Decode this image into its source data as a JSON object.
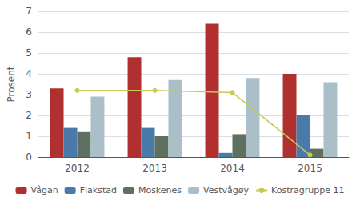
{
  "chart_data": {
    "type": "bar",
    "categories": [
      "2012",
      "2013",
      "2014",
      "2015"
    ],
    "series": [
      {
        "name": "Vågan",
        "type": "bar",
        "color": "#b03030",
        "values": [
          3.3,
          4.8,
          6.4,
          4.0
        ]
      },
      {
        "name": "Flakstad",
        "type": "bar",
        "color": "#4a7aaa",
        "values": [
          1.4,
          1.4,
          0.2,
          2.0
        ]
      },
      {
        "name": "Moskenes",
        "type": "bar",
        "color": "#607060",
        "values": [
          1.2,
          1.0,
          1.1,
          0.4
        ]
      },
      {
        "name": "Vestvågøy",
        "type": "bar",
        "color": "#aabfc8",
        "values": [
          2.9,
          3.7,
          3.8,
          3.6
        ]
      },
      {
        "name": "Kostragruppe 11",
        "type": "line",
        "color": "#c8c855",
        "marker": "circle",
        "values": [
          3.2,
          3.2,
          3.1,
          0.1
        ]
      }
    ],
    "ylabel": "Prosent",
    "ylim": [
      0,
      7
    ],
    "yticks": [
      0,
      1,
      2,
      3,
      4,
      5,
      6,
      7
    ],
    "grid": true,
    "legend": "bottom"
  }
}
